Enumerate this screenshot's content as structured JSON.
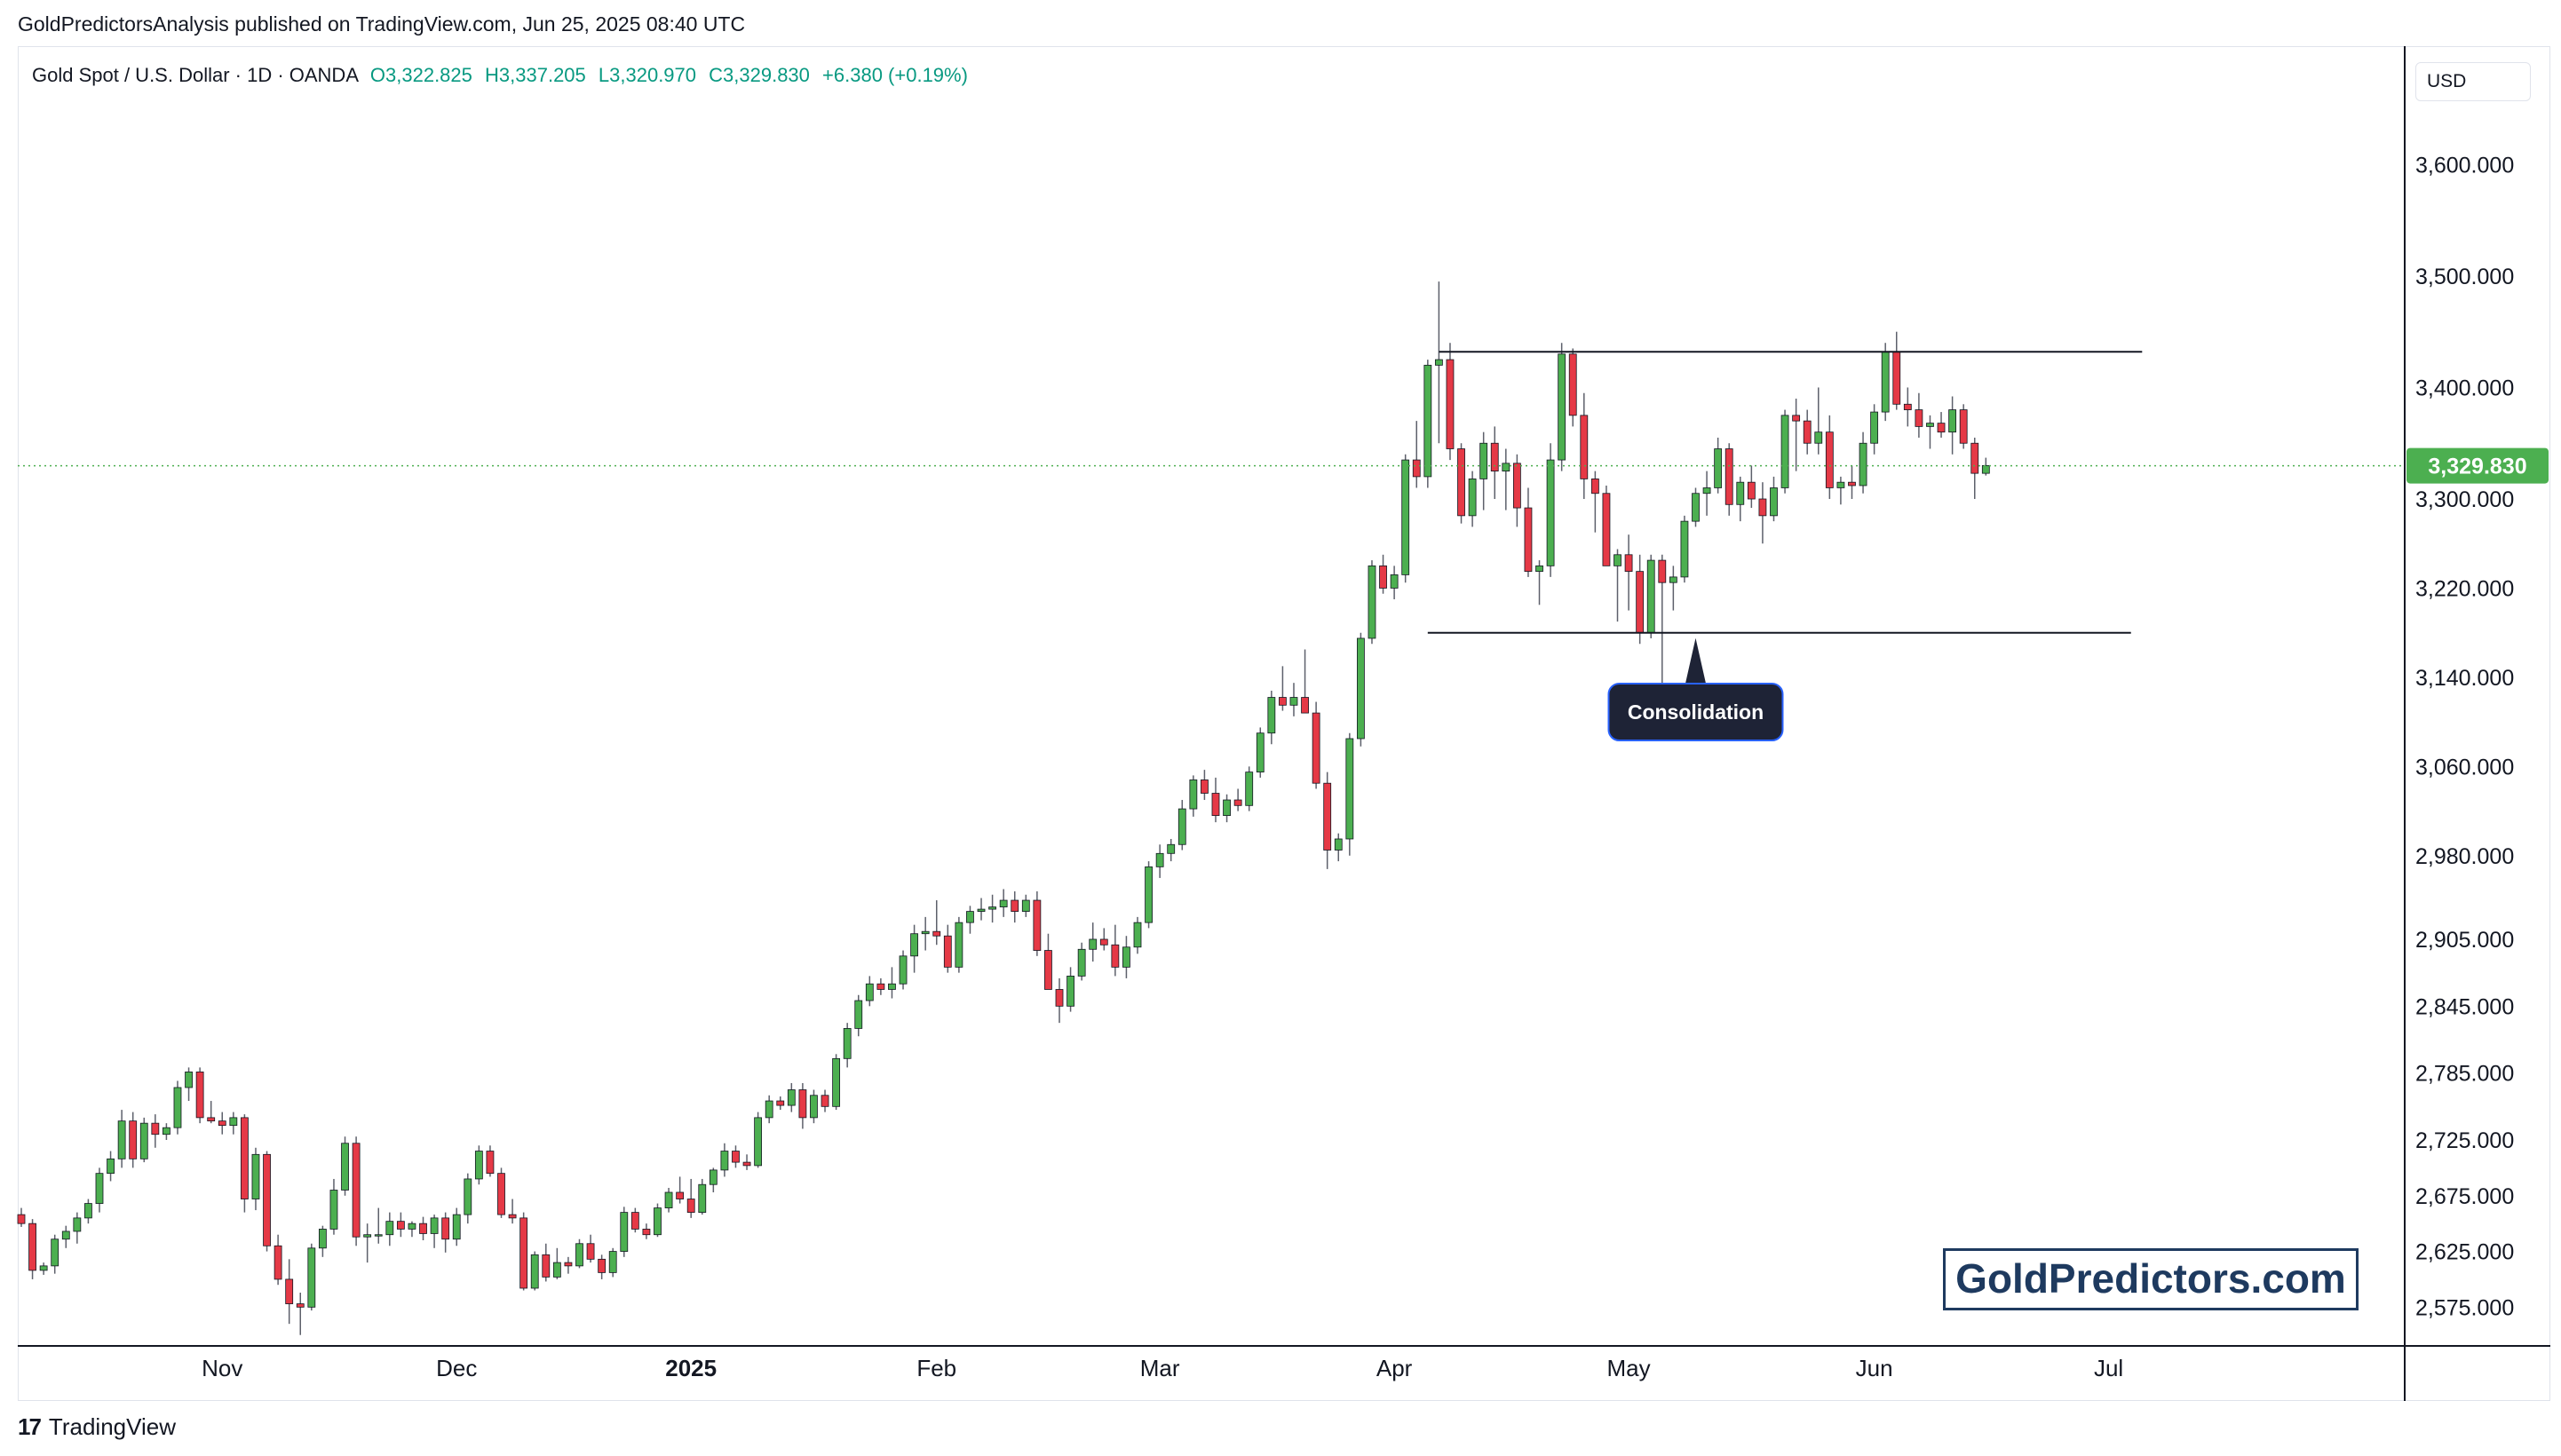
{
  "header": {
    "published_line": "GoldPredictorsAnalysis published on TradingView.com, Jun 25, 2025 08:40 UTC"
  },
  "legend": {
    "symbol": "Gold Spot / U.S. Dollar · 1D · OANDA",
    "open": "O3,322.825",
    "high": "H3,337.205",
    "low": "L3,320.970",
    "close": "C3,329.830",
    "change": "+6.380 (+0.19%)"
  },
  "currency": "USD",
  "price_label": "3,329.830",
  "annotation": "Consolidation",
  "watermark": "GoldPredictors.com",
  "footer": {
    "logo": "17",
    "brand": "TradingView"
  },
  "colors": {
    "up": "#4caf50",
    "down": "#e53946",
    "wick": "#5d606b",
    "price_line": "#4caf50",
    "annotation_bg": "#1e2336",
    "annotation_border": "#2962ff"
  },
  "chart_data": {
    "type": "candlestick",
    "title": "Gold Spot / U.S. Dollar · 1D · OANDA",
    "ylim": [
      2545,
      3660
    ],
    "y_ticks": [
      {
        "value": 3600,
        "label": "3,600.000"
      },
      {
        "value": 3500,
        "label": "3,500.000"
      },
      {
        "value": 3400,
        "label": "3,400.000"
      },
      {
        "value": 3300,
        "label": "3,300.000"
      },
      {
        "value": 3220,
        "label": "3,220.000"
      },
      {
        "value": 3140,
        "label": "3,140.000"
      },
      {
        "value": 3060,
        "label": "3,060.000"
      },
      {
        "value": 2980,
        "label": "2,980.000"
      },
      {
        "value": 2905,
        "label": "2,905.000"
      },
      {
        "value": 2845,
        "label": "2,845.000"
      },
      {
        "value": 2785,
        "label": "2,785.000"
      },
      {
        "value": 2725,
        "label": "2,725.000"
      },
      {
        "value": 2675,
        "label": "2,675.000"
      },
      {
        "value": 2625,
        "label": "2,625.000"
      },
      {
        "value": 2575,
        "label": "2,575.000"
      }
    ],
    "x_ticks": [
      {
        "index": 18,
        "label": "Nov",
        "bold": false
      },
      {
        "index": 39,
        "label": "Dec",
        "bold": false
      },
      {
        "index": 60,
        "label": "2025",
        "bold": true
      },
      {
        "index": 82,
        "label": "Feb",
        "bold": false
      },
      {
        "index": 102,
        "label": "Mar",
        "bold": false
      },
      {
        "index": 123,
        "label": "Apr",
        "bold": false
      },
      {
        "index": 144,
        "label": "May",
        "bold": false
      },
      {
        "index": 166,
        "label": "Jun",
        "bold": false
      },
      {
        "index": 187,
        "label": "Jul",
        "bold": false
      }
    ],
    "last_price": 3329.83,
    "resistance": {
      "value": 3432,
      "from_index": 127,
      "to_index": 190
    },
    "support": {
      "value": 3180,
      "from_index": 126,
      "to_index": 189
    },
    "annotation_index": 150,
    "candles": [
      [
        2658,
        2664,
        2647,
        2650
      ],
      [
        2650,
        2654,
        2600,
        2608
      ],
      [
        2608,
        2615,
        2604,
        2612
      ],
      [
        2612,
        2640,
        2605,
        2636
      ],
      [
        2636,
        2648,
        2628,
        2643
      ],
      [
        2643,
        2660,
        2632,
        2655
      ],
      [
        2655,
        2672,
        2650,
        2668
      ],
      [
        2668,
        2700,
        2660,
        2695
      ],
      [
        2695,
        2715,
        2688,
        2708
      ],
      [
        2708,
        2752,
        2700,
        2742
      ],
      [
        2742,
        2750,
        2700,
        2708
      ],
      [
        2708,
        2745,
        2705,
        2740
      ],
      [
        2740,
        2748,
        2718,
        2730
      ],
      [
        2730,
        2740,
        2725,
        2736
      ],
      [
        2736,
        2778,
        2730,
        2772
      ],
      [
        2772,
        2790,
        2760,
        2786
      ],
      [
        2786,
        2790,
        2740,
        2745
      ],
      [
        2745,
        2760,
        2740,
        2742
      ],
      [
        2742,
        2750,
        2730,
        2738
      ],
      [
        2738,
        2750,
        2730,
        2745
      ],
      [
        2745,
        2748,
        2660,
        2672
      ],
      [
        2672,
        2718,
        2662,
        2712
      ],
      [
        2712,
        2715,
        2625,
        2630
      ],
      [
        2630,
        2640,
        2595,
        2600
      ],
      [
        2600,
        2618,
        2560,
        2578
      ],
      [
        2578,
        2588,
        2550,
        2575
      ],
      [
        2575,
        2632,
        2572,
        2628
      ],
      [
        2628,
        2648,
        2620,
        2645
      ],
      [
        2645,
        2690,
        2640,
        2680
      ],
      [
        2680,
        2728,
        2675,
        2722
      ],
      [
        2722,
        2728,
        2630,
        2638
      ],
      [
        2638,
        2650,
        2615,
        2640
      ],
      [
        2640,
        2664,
        2632,
        2640
      ],
      [
        2640,
        2660,
        2630,
        2652
      ],
      [
        2652,
        2660,
        2638,
        2645
      ],
      [
        2645,
        2652,
        2638,
        2650
      ],
      [
        2650,
        2656,
        2635,
        2641
      ],
      [
        2641,
        2658,
        2628,
        2655
      ],
      [
        2655,
        2660,
        2624,
        2636
      ],
      [
        2636,
        2664,
        2630,
        2658
      ],
      [
        2658,
        2695,
        2650,
        2690
      ],
      [
        2690,
        2720,
        2685,
        2715
      ],
      [
        2715,
        2720,
        2692,
        2695
      ],
      [
        2695,
        2700,
        2655,
        2658
      ],
      [
        2658,
        2672,
        2650,
        2655
      ],
      [
        2655,
        2660,
        2590,
        2592
      ],
      [
        2592,
        2625,
        2590,
        2622
      ],
      [
        2622,
        2632,
        2598,
        2602
      ],
      [
        2602,
        2628,
        2600,
        2615
      ],
      [
        2615,
        2620,
        2605,
        2612
      ],
      [
        2612,
        2636,
        2610,
        2632
      ],
      [
        2632,
        2640,
        2615,
        2618
      ],
      [
        2618,
        2622,
        2600,
        2606
      ],
      [
        2606,
        2628,
        2602,
        2625
      ],
      [
        2625,
        2665,
        2620,
        2660
      ],
      [
        2660,
        2664,
        2642,
        2645
      ],
      [
        2645,
        2650,
        2636,
        2640
      ],
      [
        2640,
        2668,
        2638,
        2664
      ],
      [
        2664,
        2682,
        2660,
        2678
      ],
      [
        2678,
        2692,
        2668,
        2672
      ],
      [
        2672,
        2690,
        2655,
        2660
      ],
      [
        2660,
        2690,
        2658,
        2685
      ],
      [
        2685,
        2700,
        2678,
        2698
      ],
      [
        2698,
        2722,
        2692,
        2715
      ],
      [
        2715,
        2720,
        2700,
        2705
      ],
      [
        2705,
        2712,
        2698,
        2702
      ],
      [
        2702,
        2750,
        2700,
        2745
      ],
      [
        2745,
        2765,
        2740,
        2760
      ],
      [
        2760,
        2764,
        2752,
        2756
      ],
      [
        2756,
        2776,
        2750,
        2770
      ],
      [
        2770,
        2776,
        2735,
        2745
      ],
      [
        2745,
        2770,
        2740,
        2765
      ],
      [
        2765,
        2770,
        2750,
        2755
      ],
      [
        2755,
        2802,
        2752,
        2798
      ],
      [
        2798,
        2830,
        2790,
        2825
      ],
      [
        2825,
        2855,
        2818,
        2850
      ],
      [
        2850,
        2872,
        2845,
        2865
      ],
      [
        2865,
        2870,
        2855,
        2860
      ],
      [
        2860,
        2880,
        2852,
        2865
      ],
      [
        2865,
        2895,
        2860,
        2890
      ],
      [
        2890,
        2918,
        2875,
        2910
      ],
      [
        2910,
        2925,
        2895,
        2912
      ],
      [
        2912,
        2940,
        2900,
        2908
      ],
      [
        2908,
        2918,
        2875,
        2880
      ],
      [
        2880,
        2925,
        2875,
        2920
      ],
      [
        2920,
        2935,
        2910,
        2930
      ],
      [
        2930,
        2942,
        2922,
        2932
      ],
      [
        2932,
        2945,
        2920,
        2934
      ],
      [
        2934,
        2950,
        2925,
        2940
      ],
      [
        2940,
        2948,
        2920,
        2930
      ],
      [
        2930,
        2945,
        2925,
        2940
      ],
      [
        2940,
        2948,
        2890,
        2895
      ],
      [
        2895,
        2910,
        2860,
        2860
      ],
      [
        2860,
        2870,
        2830,
        2845
      ],
      [
        2845,
        2880,
        2840,
        2872
      ],
      [
        2872,
        2902,
        2868,
        2896
      ],
      [
        2896,
        2920,
        2885,
        2905
      ],
      [
        2905,
        2915,
        2895,
        2900
      ],
      [
        2900,
        2918,
        2872,
        2880
      ],
      [
        2880,
        2908,
        2870,
        2898
      ],
      [
        2898,
        2925,
        2892,
        2920
      ],
      [
        2920,
        2975,
        2915,
        2970
      ],
      [
        2970,
        2990,
        2960,
        2982
      ],
      [
        2982,
        2995,
        2975,
        2990
      ],
      [
        2990,
        3030,
        2985,
        3022
      ],
      [
        3022,
        3052,
        3015,
        3048
      ],
      [
        3048,
        3057,
        3030,
        3036
      ],
      [
        3036,
        3050,
        3010,
        3016
      ],
      [
        3016,
        3035,
        3010,
        3030
      ],
      [
        3030,
        3040,
        3020,
        3025
      ],
      [
        3025,
        3060,
        3020,
        3055
      ],
      [
        3055,
        3095,
        3050,
        3090
      ],
      [
        3090,
        3128,
        3080,
        3122
      ],
      [
        3122,
        3150,
        3110,
        3115
      ],
      [
        3115,
        3135,
        3105,
        3122
      ],
      [
        3122,
        3165,
        3110,
        3108
      ],
      [
        3108,
        3118,
        3040,
        3045
      ],
      [
        3045,
        3055,
        2968,
        2985
      ],
      [
        2985,
        3000,
        2975,
        2995
      ],
      [
        2995,
        3090,
        2980,
        3085
      ],
      [
        3085,
        3180,
        3078,
        3175
      ],
      [
        3175,
        3245,
        3170,
        3240
      ],
      [
        3240,
        3250,
        3215,
        3220
      ],
      [
        3220,
        3240,
        3210,
        3232
      ],
      [
        3232,
        3340,
        3225,
        3335
      ],
      [
        3335,
        3370,
        3310,
        3320
      ],
      [
        3320,
        3425,
        3310,
        3420
      ],
      [
        3420,
        3495,
        3350,
        3425
      ],
      [
        3425,
        3440,
        3335,
        3345
      ],
      [
        3345,
        3350,
        3278,
        3285
      ],
      [
        3285,
        3325,
        3275,
        3318
      ],
      [
        3318,
        3360,
        3290,
        3350
      ],
      [
        3350,
        3365,
        3300,
        3325
      ],
      [
        3325,
        3345,
        3290,
        3332
      ],
      [
        3332,
        3340,
        3275,
        3292
      ],
      [
        3292,
        3310,
        3230,
        3235
      ],
      [
        3235,
        3245,
        3205,
        3240
      ],
      [
        3240,
        3350,
        3230,
        3335
      ],
      [
        3335,
        3440,
        3325,
        3430
      ],
      [
        3430,
        3435,
        3365,
        3375
      ],
      [
        3375,
        3395,
        3300,
        3318
      ],
      [
        3318,
        3325,
        3270,
        3305
      ],
      [
        3305,
        3312,
        3240,
        3240
      ],
      [
        3240,
        3255,
        3190,
        3250
      ],
      [
        3250,
        3268,
        3200,
        3235
      ],
      [
        3235,
        3250,
        3170,
        3180
      ],
      [
        3180,
        3250,
        3175,
        3245
      ],
      [
        3245,
        3250,
        3130,
        3225
      ],
      [
        3225,
        3240,
        3200,
        3230
      ],
      [
        3230,
        3285,
        3225,
        3280
      ],
      [
        3280,
        3310,
        3275,
        3305
      ],
      [
        3305,
        3325,
        3285,
        3310
      ],
      [
        3310,
        3355,
        3305,
        3345
      ],
      [
        3345,
        3350,
        3285,
        3295
      ],
      [
        3295,
        3320,
        3280,
        3315
      ],
      [
        3315,
        3330,
        3292,
        3300
      ],
      [
        3300,
        3315,
        3260,
        3285
      ],
      [
        3285,
        3320,
        3280,
        3310
      ],
      [
        3310,
        3380,
        3305,
        3375
      ],
      [
        3375,
        3390,
        3325,
        3370
      ],
      [
        3370,
        3380,
        3340,
        3350
      ],
      [
        3350,
        3400,
        3340,
        3360
      ],
      [
        3360,
        3375,
        3300,
        3310
      ],
      [
        3310,
        3320,
        3295,
        3315
      ],
      [
        3315,
        3330,
        3300,
        3312
      ],
      [
        3312,
        3360,
        3305,
        3350
      ],
      [
        3350,
        3385,
        3340,
        3378
      ],
      [
        3378,
        3440,
        3370,
        3432
      ],
      [
        3432,
        3450,
        3380,
        3385
      ],
      [
        3385,
        3400,
        3365,
        3380
      ],
      [
        3380,
        3395,
        3355,
        3365
      ],
      [
        3365,
        3375,
        3345,
        3368
      ],
      [
        3368,
        3378,
        3355,
        3360
      ],
      [
        3360,
        3392,
        3340,
        3380
      ],
      [
        3380,
        3385,
        3345,
        3350
      ],
      [
        3350,
        3355,
        3300,
        3323
      ],
      [
        3323,
        3337,
        3321,
        3330
      ]
    ]
  }
}
